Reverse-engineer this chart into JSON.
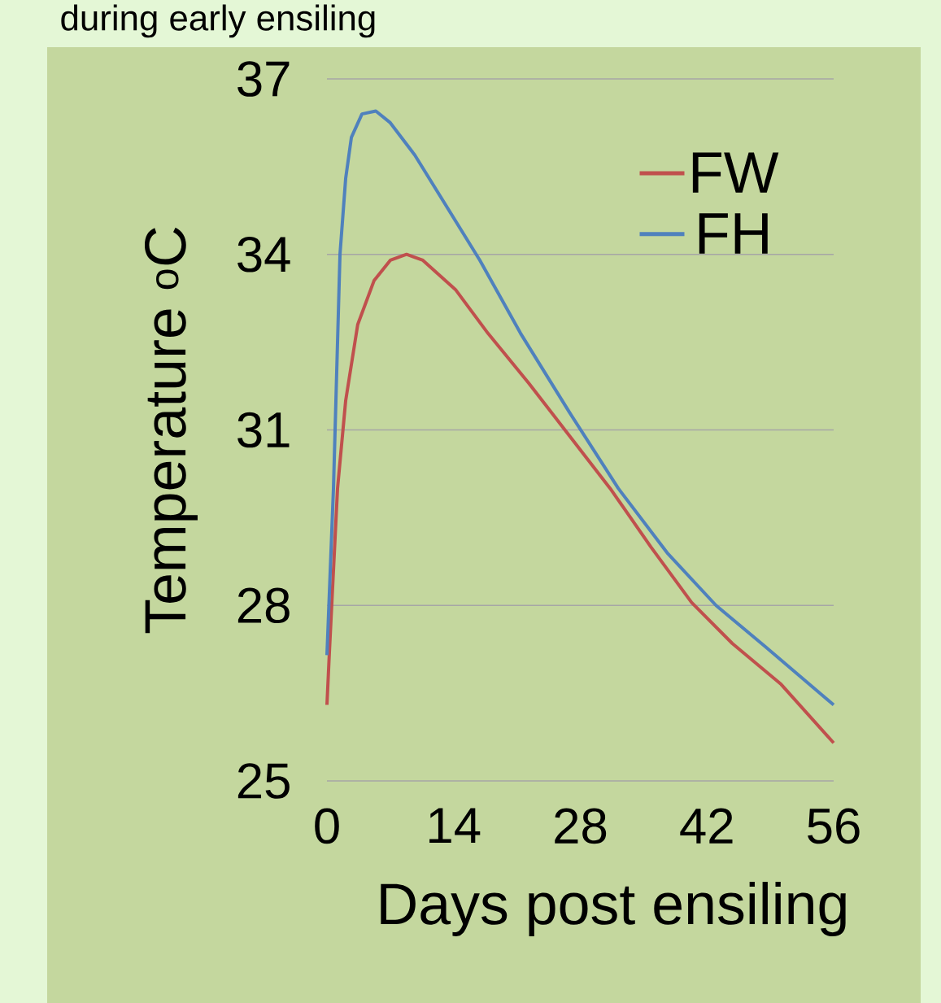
{
  "chart_data": {
    "type": "line",
    "title": "during early ensiling",
    "xlabel": "Days post ensiling",
    "ylabel": "Temperature $^{o}$C",
    "xlim": [
      0,
      56
    ],
    "xticks": [
      0,
      14,
      28,
      42,
      56
    ],
    "ylim": [
      25,
      37
    ],
    "yticks": [
      25,
      28,
      31,
      34,
      37
    ],
    "grid": "y",
    "legend": "top right",
    "marker": "none",
    "line_style": "solid",
    "series": [
      {
        "name": "FW",
        "color": "#c0504d",
        "x": [
          0,
          0.27,
          1.17,
          2.07,
          3.4,
          5.2,
          7.0,
          8.8,
          10.6,
          14.2,
          17.8,
          22.3,
          26.8,
          31.3,
          35.8,
          40.3,
          44.8,
          50.2,
          56
        ],
        "values": [
          26.3,
          27.2,
          30.0,
          31.5,
          32.8,
          33.55,
          33.9,
          34.0,
          33.9,
          33.4,
          32.65,
          31.8,
          30.9,
          30.0,
          29.0,
          28.05,
          27.35,
          26.65,
          25.65
        ]
      },
      {
        "name": "FH",
        "color": "#4f81bd",
        "x": [
          0,
          0.72,
          1.44,
          2.07,
          2.7,
          3.87,
          5.4,
          7.0,
          9.7,
          13.3,
          16.9,
          21.4,
          26.8,
          32.2,
          37.6,
          43.0,
          48.4,
          56
        ],
        "values": [
          27.15,
          30.0,
          34.0,
          35.3,
          36.0,
          36.4,
          36.45,
          36.25,
          35.7,
          34.8,
          33.9,
          32.65,
          31.3,
          30.0,
          28.9,
          28.0,
          27.3,
          26.3
        ]
      }
    ]
  }
}
